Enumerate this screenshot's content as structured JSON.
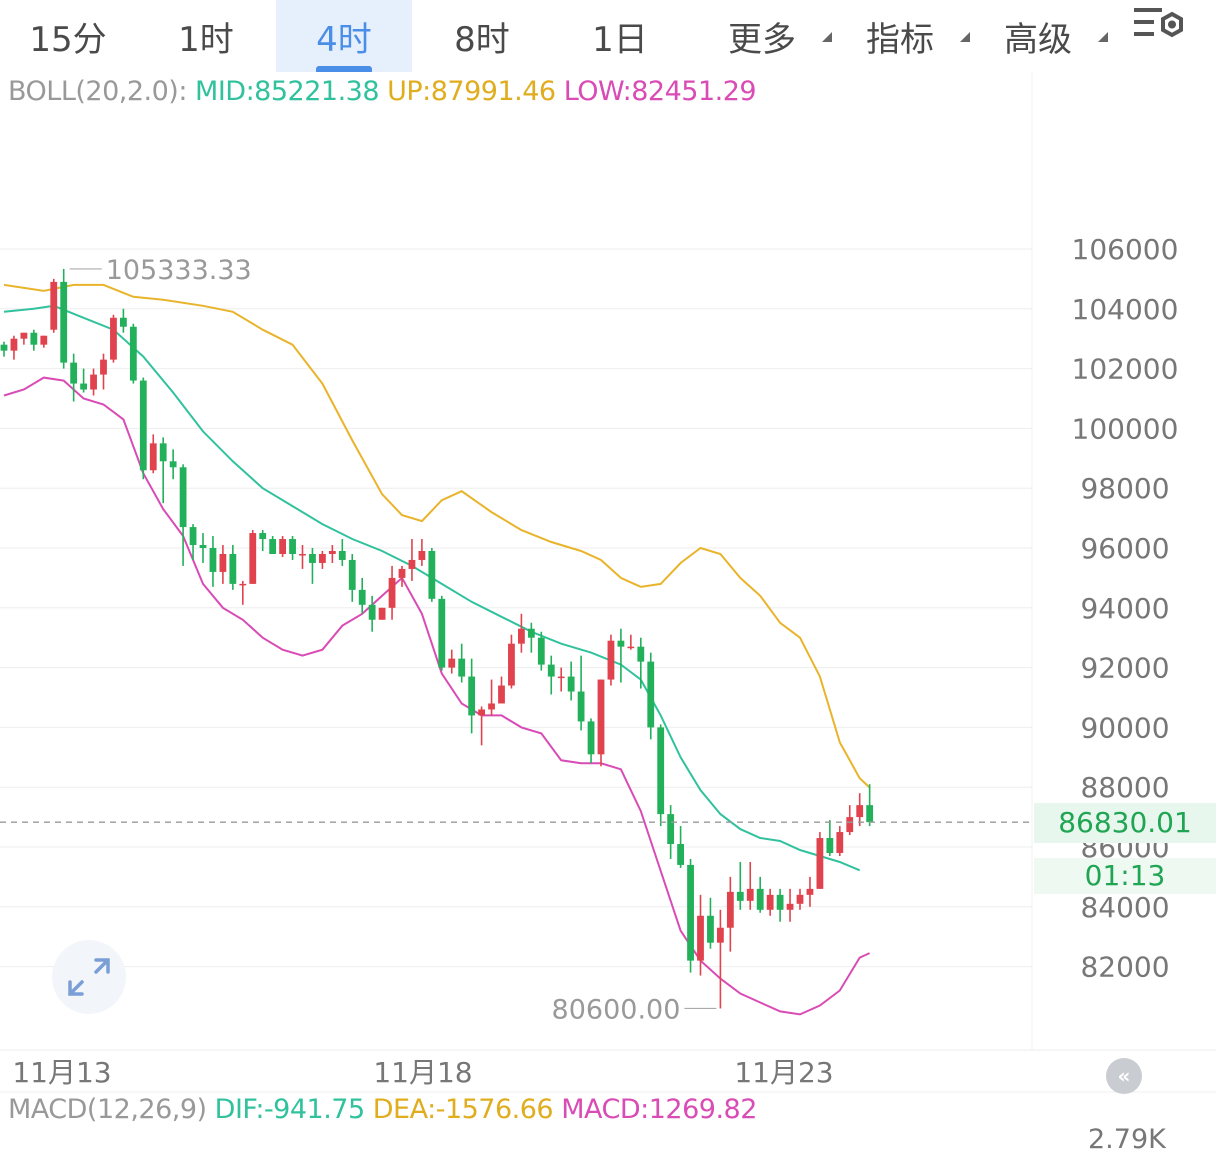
{
  "tabs": [
    {
      "label": "15分",
      "active": false,
      "dropdown": false
    },
    {
      "label": "1时",
      "active": false,
      "dropdown": false
    },
    {
      "label": "4时",
      "active": true,
      "dropdown": false
    },
    {
      "label": "8时",
      "active": false,
      "dropdown": false
    },
    {
      "label": "1日",
      "active": false,
      "dropdown": false
    },
    {
      "label": "更多",
      "active": false,
      "dropdown": true
    },
    {
      "label": "指标",
      "active": false,
      "dropdown": true
    },
    {
      "label": "高级",
      "active": false,
      "dropdown": true
    }
  ],
  "settings_icon": "chart-settings-icon",
  "boll": {
    "name": "BOLL(20,2.0):",
    "mid": "MID:85221.38",
    "up": "UP:87991.46",
    "low": "LOW:82451.29"
  },
  "macd": {
    "name": "MACD(12,26,9)",
    "dif": "DIF:-941.75",
    "dea": "DEA:-1576.66",
    "macd": "MACD:1269.82"
  },
  "price_tag": "86830.01",
  "countdown": "01:13",
  "volume_label": "2.79K",
  "colors": {
    "up": "#e0434e",
    "down": "#22b05b",
    "mid": "#31c29d",
    "upper": "#e9b42b",
    "lower": "#d94bb5",
    "grid": "#eeeeee",
    "axis_text": "#777777"
  },
  "chart_data": {
    "type": "candlestick",
    "interval": "4时",
    "y_ticks": [
      106000,
      104000,
      102000,
      100000,
      98000,
      96000,
      94000,
      92000,
      90000,
      88000,
      86000,
      84000,
      82000
    ],
    "x_labels": [
      "11月13",
      "11月18",
      "11月23"
    ],
    "ylim": [
      79900,
      107100
    ],
    "high_label": "105333.33",
    "low_label": "80600.00",
    "last_price": 86830.01,
    "candles": [
      [
        102800,
        102900,
        102400,
        102600
      ],
      [
        102600,
        103100,
        102300,
        103000
      ],
      [
        103000,
        103200,
        102800,
        103200
      ],
      [
        103200,
        103300,
        102600,
        102800
      ],
      [
        102800,
        103100,
        102700,
        103100
      ],
      [
        103300,
        105000,
        103200,
        104900
      ],
      [
        104900,
        105333.33,
        102000,
        102200
      ],
      [
        102200,
        102500,
        100900,
        101500
      ],
      [
        101500,
        102000,
        101200,
        101300
      ],
      [
        101300,
        102000,
        101100,
        101800
      ],
      [
        101800,
        102500,
        101300,
        102300
      ],
      [
        102300,
        103800,
        102200,
        103700
      ],
      [
        103700,
        104000,
        103200,
        103400
      ],
      [
        103400,
        103500,
        101500,
        101600
      ],
      [
        101600,
        101700,
        98300,
        98600
      ],
      [
        98600,
        99800,
        98500,
        99500
      ],
      [
        99500,
        99700,
        97500,
        98900
      ],
      [
        98900,
        99300,
        98300,
        98700
      ],
      [
        98700,
        98800,
        95400,
        96700
      ],
      [
        96700,
        96800,
        95600,
        96100
      ],
      [
        96100,
        96500,
        95500,
        96000
      ],
      [
        96000,
        96400,
        94700,
        95200
      ],
      [
        95200,
        96100,
        94800,
        95800
      ],
      [
        95800,
        96100,
        94600,
        94800
      ],
      [
        94800,
        94900,
        94100,
        94800
      ],
      [
        94800,
        96600,
        94800,
        96500
      ],
      [
        96500,
        96600,
        95900,
        96300
      ],
      [
        96300,
        96400,
        95800,
        95800
      ],
      [
        95800,
        96400,
        95700,
        96300
      ],
      [
        96300,
        96400,
        95600,
        95800
      ],
      [
        95800,
        96100,
        95300,
        95800
      ],
      [
        95800,
        96000,
        94800,
        95500
      ],
      [
        95500,
        95900,
        95300,
        95800
      ],
      [
        95800,
        96100,
        95500,
        95900
      ],
      [
        95900,
        96300,
        95400,
        95600
      ],
      [
        95600,
        95800,
        94200,
        94600
      ],
      [
        94600,
        95000,
        93800,
        94100
      ],
      [
        94100,
        94400,
        93200,
        93600
      ],
      [
        93600,
        94000,
        93600,
        94000
      ],
      [
        94000,
        95400,
        93600,
        95000
      ],
      [
        95000,
        95400,
        94700,
        95300
      ],
      [
        95300,
        96300,
        94900,
        95600
      ],
      [
        95600,
        96300,
        95400,
        95900
      ],
      [
        95900,
        96000,
        94200,
        94300
      ],
      [
        94300,
        94400,
        91900,
        92000
      ],
      [
        92000,
        92600,
        91800,
        92300
      ],
      [
        92300,
        92800,
        91500,
        91700
      ],
      [
        91700,
        92300,
        89800,
        90400
      ],
      [
        90400,
        90700,
        89400,
        90600
      ],
      [
        90600,
        91600,
        90400,
        90800
      ],
      [
        90800,
        91700,
        90800,
        91400
      ],
      [
        91400,
        93100,
        91300,
        92800
      ],
      [
        92800,
        93800,
        92500,
        93300
      ],
      [
        93300,
        93500,
        92500,
        93000
      ],
      [
        93000,
        93200,
        91900,
        92100
      ],
      [
        92100,
        92400,
        91100,
        91700
      ],
      [
        91700,
        92000,
        91200,
        91700
      ],
      [
        91700,
        92200,
        90900,
        91200
      ],
      [
        91200,
        92400,
        89900,
        90200
      ],
      [
        90200,
        90300,
        88800,
        89100
      ],
      [
        89100,
        91600,
        88700,
        91600
      ],
      [
        91600,
        93100,
        91400,
        92900
      ],
      [
        92900,
        93300,
        91500,
        92700
      ],
      [
        92700,
        93100,
        92600,
        92700
      ],
      [
        92700,
        93000,
        91300,
        92200
      ],
      [
        92200,
        92500,
        89600,
        90000
      ],
      [
        90000,
        90100,
        86700,
        87100
      ],
      [
        87100,
        87400,
        85600,
        86100
      ],
      [
        86100,
        86700,
        85300,
        85400
      ],
      [
        85400,
        85600,
        81800,
        82200
      ],
      [
        82200,
        84400,
        81700,
        83700
      ],
      [
        83700,
        84300,
        82600,
        82800
      ],
      [
        82800,
        83900,
        80600,
        83300
      ],
      [
        83300,
        85000,
        82500,
        84500
      ],
      [
        84500,
        85500,
        83900,
        84200
      ],
      [
        84200,
        85500,
        83900,
        84600
      ],
      [
        84600,
        85000,
        83800,
        83900
      ],
      [
        83900,
        84600,
        83700,
        84400
      ],
      [
        84400,
        84600,
        83500,
        83900
      ],
      [
        83900,
        84600,
        83500,
        84100
      ],
      [
        84100,
        84600,
        83900,
        84400
      ],
      [
        84400,
        85000,
        84000,
        84600
      ],
      [
        84600,
        86500,
        84600,
        86300
      ],
      [
        86300,
        86900,
        85700,
        85800
      ],
      [
        85800,
        86700,
        85700,
        86500
      ],
      [
        86500,
        87400,
        86400,
        87000
      ],
      [
        87000,
        87800,
        86700,
        87400
      ],
      [
        87400,
        88100,
        86700,
        86830.01
      ]
    ],
    "boll_up": [
      [
        0,
        104800
      ],
      [
        4,
        104600
      ],
      [
        7,
        104800
      ],
      [
        10,
        104800
      ],
      [
        13,
        104400
      ],
      [
        16,
        104300
      ],
      [
        20,
        104100
      ],
      [
        23,
        103900
      ],
      [
        26,
        103300
      ],
      [
        29,
        102800
      ],
      [
        32,
        101500
      ],
      [
        35,
        99600
      ],
      [
        38,
        97800
      ],
      [
        40,
        97100
      ],
      [
        42,
        96900
      ],
      [
        44,
        97600
      ],
      [
        46,
        97900
      ],
      [
        49,
        97200
      ],
      [
        52,
        96600
      ],
      [
        55,
        96200
      ],
      [
        58,
        95900
      ],
      [
        60,
        95600
      ],
      [
        62,
        95000
      ],
      [
        64,
        94700
      ],
      [
        66,
        94800
      ],
      [
        68,
        95500
      ],
      [
        70,
        96000
      ],
      [
        72,
        95800
      ],
      [
        74,
        95000
      ],
      [
        76,
        94400
      ],
      [
        78,
        93500
      ],
      [
        80,
        93000
      ],
      [
        82,
        91700
      ],
      [
        84,
        89500
      ],
      [
        86,
        88300
      ],
      [
        87,
        87991.46
      ]
    ],
    "boll_mid": [
      [
        0,
        103900
      ],
      [
        3,
        104000
      ],
      [
        5,
        104100
      ],
      [
        8,
        103700
      ],
      [
        11,
        103300
      ],
      [
        14,
        102400
      ],
      [
        17,
        101200
      ],
      [
        20,
        99900
      ],
      [
        23,
        98900
      ],
      [
        26,
        98000
      ],
      [
        29,
        97400
      ],
      [
        32,
        96800
      ],
      [
        35,
        96300
      ],
      [
        38,
        95900
      ],
      [
        41,
        95400
      ],
      [
        44,
        94800
      ],
      [
        47,
        94200
      ],
      [
        50,
        93700
      ],
      [
        53,
        93200
      ],
      [
        56,
        92800
      ],
      [
        59,
        92500
      ],
      [
        62,
        92100
      ],
      [
        64,
        91600
      ],
      [
        66,
        90400
      ],
      [
        68,
        89000
      ],
      [
        70,
        87900
      ],
      [
        72,
        87100
      ],
      [
        74,
        86600
      ],
      [
        76,
        86300
      ],
      [
        78,
        86200
      ],
      [
        80,
        85900
      ],
      [
        82,
        85700
      ],
      [
        84,
        85500
      ],
      [
        86,
        85221.38
      ]
    ],
    "boll_low": [
      [
        0,
        101100
      ],
      [
        2,
        101300
      ],
      [
        4,
        101700
      ],
      [
        6,
        101600
      ],
      [
        8,
        101000
      ],
      [
        10,
        100800
      ],
      [
        12,
        100300
      ],
      [
        14,
        98500
      ],
      [
        16,
        97300
      ],
      [
        18,
        96400
      ],
      [
        20,
        94800
      ],
      [
        22,
        94000
      ],
      [
        24,
        93600
      ],
      [
        26,
        93000
      ],
      [
        28,
        92600
      ],
      [
        30,
        92400
      ],
      [
        32,
        92600
      ],
      [
        34,
        93400
      ],
      [
        36,
        93800
      ],
      [
        38,
        94400
      ],
      [
        40,
        95000
      ],
      [
        42,
        93800
      ],
      [
        44,
        91800
      ],
      [
        46,
        90800
      ],
      [
        48,
        90400
      ],
      [
        50,
        90400
      ],
      [
        52,
        90000
      ],
      [
        54,
        89800
      ],
      [
        56,
        88900
      ],
      [
        58,
        88800
      ],
      [
        60,
        88800
      ],
      [
        62,
        88600
      ],
      [
        64,
        87200
      ],
      [
        66,
        85200
      ],
      [
        68,
        83200
      ],
      [
        70,
        82200
      ],
      [
        72,
        81600
      ],
      [
        74,
        81100
      ],
      [
        76,
        80800
      ],
      [
        78,
        80500
      ],
      [
        80,
        80400
      ],
      [
        82,
        80700
      ],
      [
        84,
        81200
      ],
      [
        86,
        82300
      ],
      [
        87,
        82451.29
      ]
    ]
  }
}
